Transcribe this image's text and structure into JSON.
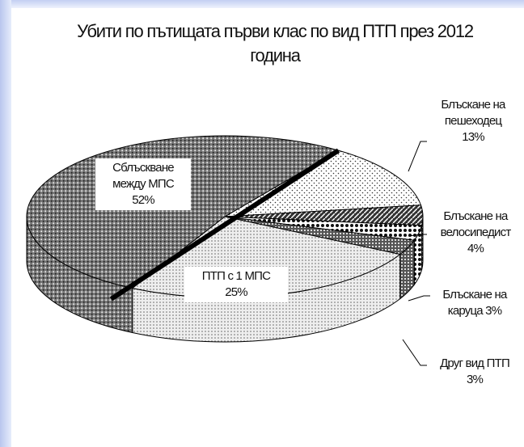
{
  "chart_data": {
    "type": "pie3d",
    "title": "Убити по пътищата първи клас по вид ПТП през 2012 година",
    "categories": [
      "Блъскане на пешеходец",
      "Блъскане на велосипедист",
      "Блъскане на каруца",
      "Друг вид ПТП",
      "ПТП с 1 МПС",
      "Сблъскване между МПС"
    ],
    "values": [
      13,
      4,
      3,
      3,
      25,
      52
    ],
    "value_labels": [
      "13%",
      "4%",
      "3%",
      "3%",
      "25%",
      "52%"
    ]
  }
}
